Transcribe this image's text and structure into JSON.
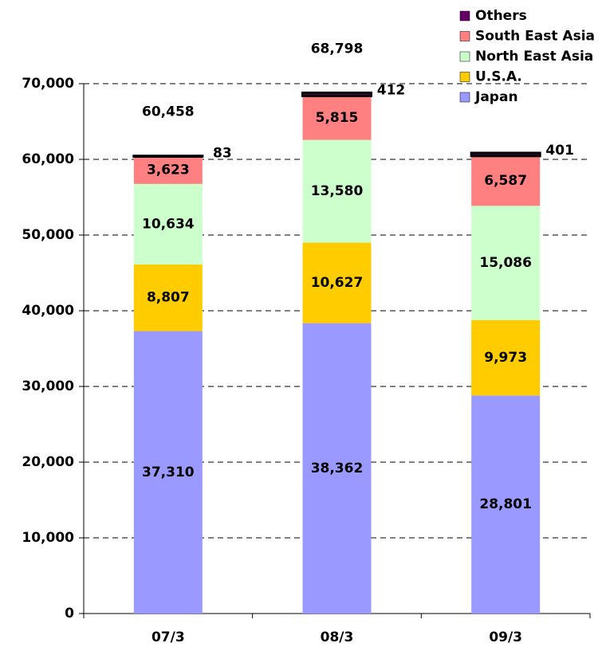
{
  "chart_data": {
    "type": "stacked_bar",
    "categories": [
      "07/3",
      "08/3",
      "09/3"
    ],
    "series": [
      {
        "name": "Japan",
        "color": "#9999ff",
        "values": [
          37310,
          38362,
          28801
        ],
        "value_labels": [
          "37,310",
          "38,362",
          "28,801"
        ]
      },
      {
        "name": "U.S.A.",
        "color": "#ffcc00",
        "values": [
          8807,
          10627,
          9973
        ],
        "value_labels": [
          "8,807",
          "10,627",
          "9,973"
        ]
      },
      {
        "name": "North East Asia",
        "color": "#ccffcc",
        "values": [
          10634,
          13580,
          15086
        ],
        "value_labels": [
          "10,634",
          "13,580",
          "15,086"
        ]
      },
      {
        "name": "South East Asia",
        "color": "#ff8080",
        "values": [
          3623,
          5815,
          6587
        ],
        "value_labels": [
          "3,623",
          "5,815",
          "6,587"
        ]
      },
      {
        "name": "Others",
        "color": "#660066",
        "values": [
          83,
          412,
          401
        ],
        "value_labels": [
          "83",
          "412",
          "401"
        ]
      }
    ],
    "totals": {
      "values": [
        60458,
        68798,
        null
      ],
      "value_labels": [
        "60,458",
        "68,798",
        null
      ]
    },
    "ylim": [
      0,
      70000
    ],
    "yticks": [
      {
        "value": 0,
        "label": "0"
      },
      {
        "value": 10000,
        "label": "10,000"
      },
      {
        "value": 20000,
        "label": "20,000"
      },
      {
        "value": 30000,
        "label": "30,000"
      },
      {
        "value": 40000,
        "label": "40,000"
      },
      {
        "value": 50000,
        "label": "50,000"
      },
      {
        "value": 60000,
        "label": "60,000"
      },
      {
        "value": 70000,
        "label": "70,000"
      }
    ],
    "grid": true,
    "legend": "top-right"
  }
}
